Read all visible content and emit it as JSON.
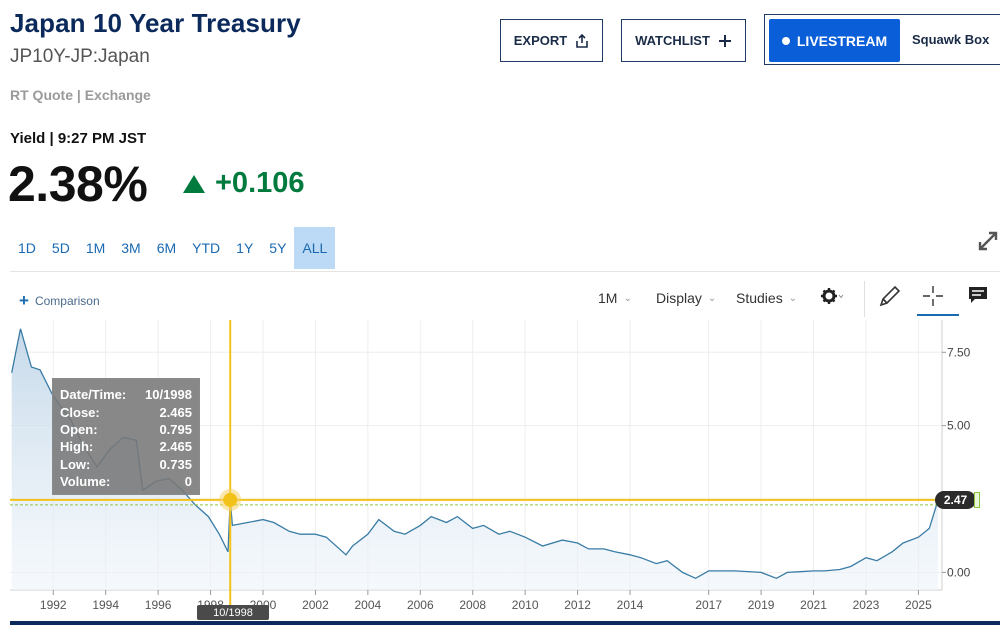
{
  "header": {
    "title": "Japan 10 Year Treasury",
    "symbol": "JP10Y-JP:Japan",
    "rt_quote": "RT Quote | Exchange"
  },
  "actions": {
    "export_label": "EXPORT",
    "watchlist_label": "WATCHLIST",
    "livestream_label": "LIVESTREAM",
    "squawk_label": "Squawk Box"
  },
  "quote": {
    "yield_label": "Yield | 9:27 PM JST",
    "price": "2.38%",
    "change": "+0.106"
  },
  "ranges": [
    "1D",
    "5D",
    "1M",
    "3M",
    "6M",
    "YTD",
    "1Y",
    "5Y",
    "ALL"
  ],
  "active_range": "ALL",
  "toolbar": {
    "comparison_label": "Comparison",
    "interval_label": "1M",
    "display_label": "Display",
    "studies_label": "Studies"
  },
  "tooltip": {
    "rows": [
      {
        "label": "Date/Time:",
        "value": "10/1998"
      },
      {
        "label": "Close:",
        "value": "2.465"
      },
      {
        "label": "Open:",
        "value": "0.795"
      },
      {
        "label": "High:",
        "value": "2.465"
      },
      {
        "label": "Low:",
        "value": "0.735"
      },
      {
        "label": "Volume:",
        "value": "0"
      }
    ]
  },
  "crosshair_date": "10/1998",
  "last_value_label": "2.47",
  "colors": {
    "brand_navy": "#0b2a5b",
    "live_blue": "#0a5ed7",
    "up_green": "#007a3d",
    "range_active": "#bcd9f5",
    "line": "#3a7ca5",
    "area": "#dbe9f5",
    "crosshair": "#f2c21b"
  },
  "icons": {
    "export": "share-upload-icon",
    "watchlist": "plus-icon",
    "expand": "expand-arrows-icon",
    "settings": "gear-icon",
    "draw": "pencil-icon",
    "crosshair": "crosshair-icon",
    "comments": "chat-bubble-icon"
  },
  "chart_data": {
    "type": "area",
    "title": "",
    "xlabel": "",
    "ylabel": "",
    "x_ticks": [
      "1992",
      "1994",
      "1996",
      "1998",
      "2000",
      "2002",
      "2004",
      "2006",
      "2008",
      "2010",
      "2012",
      "2014",
      "2017",
      "2019",
      "2021",
      "2023",
      "2025"
    ],
    "y_ticks": [
      "7.50",
      "5.00",
      "2.50",
      "0.00"
    ],
    "ylim": [
      -0.6,
      8.6
    ],
    "grid": true,
    "x": [
      "1990-06",
      "1990-10",
      "1991-03",
      "1991-07",
      "1992-01",
      "1992-09",
      "1993-03",
      "1993-09",
      "1994-03",
      "1994-09",
      "1995-03",
      "1995-06",
      "1995-12",
      "1996-06",
      "1996-12",
      "1997-06",
      "1997-12",
      "1998-05",
      "1998-09",
      "1998-10",
      "1998-11",
      "1999-06",
      "2000-01",
      "2000-06",
      "2001-01",
      "2001-06",
      "2002-01",
      "2002-06",
      "2003-03",
      "2003-06",
      "2004-01",
      "2004-06",
      "2005-01",
      "2005-06",
      "2006-01",
      "2006-06",
      "2007-01",
      "2007-06",
      "2008-01",
      "2008-06",
      "2009-01",
      "2009-06",
      "2010-01",
      "2010-09",
      "2011-06",
      "2012-01",
      "2012-06",
      "2013-01",
      "2013-06",
      "2014-01",
      "2014-06",
      "2015-01",
      "2015-06",
      "2016-01",
      "2016-07",
      "2017-01",
      "2017-06",
      "2018-01",
      "2018-06",
      "2019-01",
      "2019-08",
      "2020-01",
      "2020-06",
      "2021-01",
      "2021-06",
      "2022-01",
      "2022-06",
      "2023-01",
      "2023-06",
      "2024-01",
      "2024-06",
      "2025-01",
      "2025-06",
      "2025-10"
    ],
    "values": [
      6.8,
      8.3,
      7.0,
      6.9,
      6.0,
      5.2,
      4.3,
      3.6,
      4.2,
      4.6,
      4.5,
      2.8,
      3.1,
      3.2,
      2.8,
      2.3,
      1.9,
      1.3,
      0.7,
      2.47,
      1.6,
      1.7,
      1.8,
      1.7,
      1.4,
      1.3,
      1.3,
      1.2,
      0.6,
      0.9,
      1.3,
      1.8,
      1.4,
      1.3,
      1.6,
      1.9,
      1.7,
      1.9,
      1.5,
      1.6,
      1.3,
      1.4,
      1.2,
      0.9,
      1.1,
      1.0,
      0.8,
      0.8,
      0.7,
      0.6,
      0.5,
      0.3,
      0.4,
      0.0,
      -0.2,
      0.05,
      0.05,
      0.05,
      0.03,
      0.0,
      -0.2,
      0.0,
      0.02,
      0.05,
      0.05,
      0.1,
      0.2,
      0.5,
      0.4,
      0.7,
      1.0,
      1.2,
      1.5,
      2.47
    ]
  }
}
